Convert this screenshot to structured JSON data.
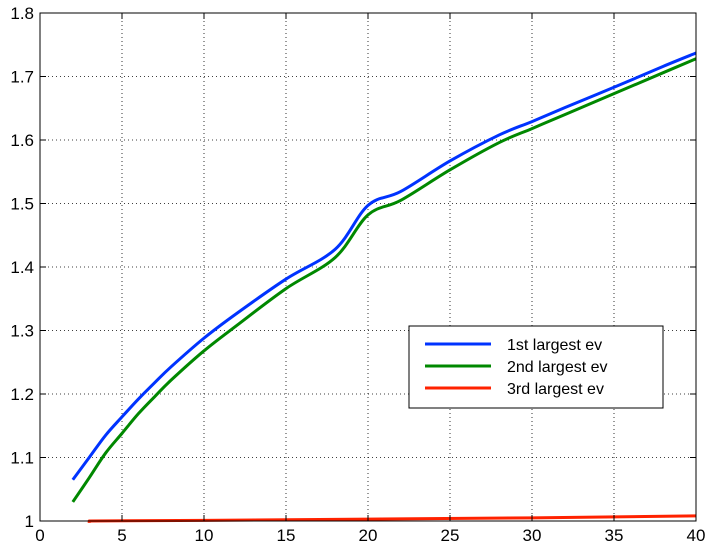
{
  "chart_data": {
    "type": "line",
    "title": "",
    "xlabel": "",
    "ylabel": "",
    "xlim": [
      0,
      40
    ],
    "ylim": [
      1.0,
      1.8
    ],
    "xticks": [
      0,
      5,
      10,
      15,
      20,
      25,
      30,
      35,
      40
    ],
    "yticks": [
      1,
      1.1,
      1.2,
      1.3,
      1.4,
      1.5,
      1.6,
      1.7,
      1.8
    ],
    "xtick_labels": [
      "0",
      "5",
      "10",
      "15",
      "20",
      "25",
      "30",
      "35",
      "40"
    ],
    "ytick_labels": [
      "1",
      "1.1",
      "1.2",
      "1.3",
      "1.4",
      "1.5",
      "1.6",
      "1.7",
      "1.8"
    ],
    "grid": true,
    "legend_position": "center-right",
    "series": [
      {
        "name": "1st largest ev",
        "color": "#0033ff",
        "x": [
          2,
          3,
          4,
          5,
          6,
          7,
          8,
          10,
          12,
          15,
          18,
          20,
          22,
          25,
          28,
          30,
          32,
          35,
          38,
          40
        ],
        "y": [
          1.065,
          1.1,
          1.135,
          1.164,
          1.192,
          1.218,
          1.243,
          1.288,
          1.327,
          1.381,
          1.428,
          1.497,
          1.519,
          1.567,
          1.608,
          1.629,
          1.651,
          1.683,
          1.716,
          1.737
        ]
      },
      {
        "name": "2nd largest ev",
        "color": "#008800",
        "x": [
          2,
          3,
          4,
          5,
          6,
          7,
          8,
          10,
          12,
          15,
          18,
          20,
          22,
          25,
          28,
          30,
          32,
          35,
          38,
          40
        ],
        "y": [
          1.03,
          1.068,
          1.107,
          1.138,
          1.169,
          1.196,
          1.222,
          1.268,
          1.308,
          1.366,
          1.415,
          1.482,
          1.505,
          1.553,
          1.596,
          1.618,
          1.64,
          1.673,
          1.706,
          1.728
        ]
      },
      {
        "name": "3rd largest ev",
        "color": "#ff2200",
        "x": [
          3,
          3,
          10,
          20,
          30,
          40
        ],
        "y": [
          0.997,
          1.0,
          1.001,
          1.003,
          1.005,
          1.008
        ]
      }
    ]
  }
}
